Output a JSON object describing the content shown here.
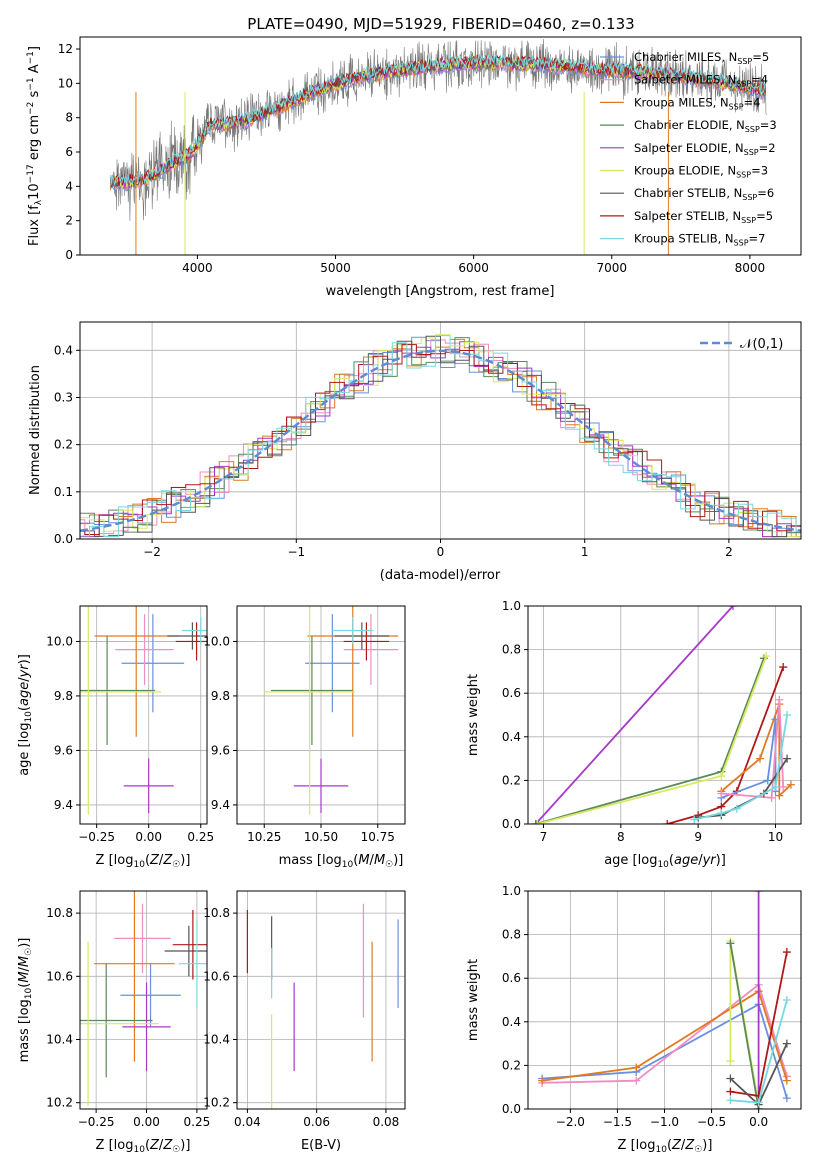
{
  "figure_title": "PLATE=0490, MJD=51929, FIBERID=0460, z=0.133",
  "colors": {
    "Chabrier MILES": "#6a8fe0",
    "Salpeter MILES": "#f08cc0",
    "Kroupa MILES": "#e07a20",
    "Chabrier ELODIE": "#5a8a5a",
    "Salpeter ELODIE": "#a838c8",
    "Kroupa ELODIE": "#d8e860",
    "Chabrier STELIB": "#555555",
    "Salpeter STELIB": "#b01818",
    "Kroupa STELIB": "#78d8e0",
    "gauss": "#5b8bd6"
  },
  "chart_data": [
    {
      "id": "spectrum",
      "type": "line",
      "xlabel": "wavelength [Angstrom, rest frame]",
      "ylabel": "Flux [f_λ10^-17 erg cm^-2 s^-1 A^-1]",
      "xlim": [
        3150,
        8370
      ],
      "ylim": [
        0,
        12.7
      ],
      "xticks": [
        4000,
        5000,
        6000,
        7000,
        8000
      ],
      "yticks": [
        0,
        2,
        4,
        6,
        8,
        10,
        12
      ],
      "grid": false,
      "legend": "top-right",
      "legend_entries": [
        "Chabrier MILES, N_SSP=5",
        "Salpeter MILES, N_SSP=4",
        "Kroupa MILES, N_SSP=4",
        "Chabrier ELODIE, N_SSP=3",
        "Salpeter ELODIE, N_SSP=2",
        "Kroupa ELODIE, N_SSP=3",
        "Chabrier STELIB, N_SSP=6",
        "Salpeter STELIB, N_SSP=5",
        "Kroupa STELIB, N_SSP=7"
      ],
      "series": [
        {
          "name": "Chabrier MILES, N_SSP=5",
          "points": [
            [
              3370,
              4.2
            ],
            [
              3600,
              4.3
            ],
            [
              3950,
              5.9
            ],
            [
              4100,
              7.6
            ],
            [
              4300,
              7.7
            ],
            [
              4600,
              8.6
            ],
            [
              4860,
              9.6
            ],
            [
              5200,
              10.4
            ],
            [
              5600,
              10.9
            ],
            [
              6000,
              11.2
            ],
            [
              6500,
              11.1
            ],
            [
              6900,
              10.8
            ],
            [
              7300,
              10.6
            ],
            [
              7600,
              10.3
            ],
            [
              8100,
              9.6
            ]
          ]
        },
        {
          "name": "Kroupa STELIB, N_SSP=7",
          "points": [
            [
              3370,
              4.1
            ],
            [
              3600,
              4.4
            ],
            [
              3900,
              5.5
            ],
            [
              4050,
              7.3
            ],
            [
              4300,
              7.8
            ],
            [
              4600,
              8.7
            ],
            [
              4860,
              9.5
            ],
            [
              5200,
              10.3
            ],
            [
              5600,
              10.9
            ],
            [
              6000,
              11.2
            ],
            [
              6500,
              11.1
            ],
            [
              6900,
              10.9
            ],
            [
              7300,
              10.6
            ],
            [
              7600,
              10.2
            ],
            [
              8100,
              9.5
            ]
          ]
        }
      ]
    },
    {
      "id": "residuals",
      "type": "line",
      "xlabel": "(data-model)/error",
      "ylabel": "Normed distribution",
      "xlim": [
        -2.5,
        2.5
      ],
      "ylim": [
        0,
        0.46
      ],
      "xticks": [
        -2,
        -1,
        0,
        1,
        2
      ],
      "yticks": [
        0.0,
        0.1,
        0.2,
        0.3,
        0.4
      ],
      "grid": true,
      "legend": "top-right",
      "legend_entries": [
        "N(0,1)"
      ],
      "series": [
        {
          "name": "N(0,1)",
          "function": "standard normal pdf"
        }
      ]
    },
    {
      "id": "age_vs_Z",
      "type": "scatter",
      "xlabel": "Z [log10(Z/Z☉)]",
      "ylabel": "age  [log10(age/yr)]",
      "xlim": [
        -0.33,
        0.28
      ],
      "ylim": [
        9.33,
        10.13
      ],
      "xticks": [
        -0.25,
        0.0,
        0.25
      ],
      "yticks": [
        9.4,
        9.6,
        9.8,
        10.0
      ],
      "grid": true,
      "points": [
        {
          "model": "Chabrier MILES",
          "x": 0.02,
          "y": 9.92,
          "xerr": 0.15,
          "yerr": 0.18
        },
        {
          "model": "Salpeter MILES",
          "x": -0.02,
          "y": 9.97,
          "xerr": 0.14,
          "yerr": 0.13
        },
        {
          "model": "Kroupa MILES",
          "x": -0.06,
          "y": 10.02,
          "xerr": 0.2,
          "yerr": 0.37
        },
        {
          "model": "Chabrier ELODIE",
          "x": -0.2,
          "y": 9.82,
          "xerr": 0.23,
          "yerr": 0.2
        },
        {
          "model": "Salpeter ELODIE",
          "x": 0.0,
          "y": 9.47,
          "xerr": 0.12,
          "yerr": 0.1
        },
        {
          "model": "Kroupa ELODIE",
          "x": -0.29,
          "y": 9.815,
          "xerr": 0.35,
          "yerr": 0.45
        },
        {
          "model": "Chabrier STELIB",
          "x": 0.21,
          "y": 10.02,
          "xerr": 0.12,
          "yerr": 0.05
        },
        {
          "model": "Salpeter STELIB",
          "x": 0.23,
          "y": 10.0,
          "xerr": 0.1,
          "yerr": 0.07
        },
        {
          "model": "Kroupa STELIB",
          "x": 0.25,
          "y": 10.04,
          "xerr": 0.09,
          "yerr": 0.05
        }
      ]
    },
    {
      "id": "age_vs_mass",
      "type": "scatter",
      "xlabel": "mass [log10(M/M☉)]",
      "ylabel": "",
      "xlim": [
        10.13,
        10.87
      ],
      "ylim": [
        9.33,
        10.13
      ],
      "xticks": [
        10.25,
        10.5,
        10.75
      ],
      "yticks": [
        9.4,
        9.6,
        9.8,
        10.0
      ],
      "grid": true,
      "points": [
        {
          "model": "Chabrier MILES",
          "x": 10.55,
          "y": 9.92,
          "xerr": 0.12,
          "yerr": 0.18
        },
        {
          "model": "Salpeter MILES",
          "x": 10.72,
          "y": 9.97,
          "xerr": 0.12,
          "yerr": 0.13
        },
        {
          "model": "Kroupa MILES",
          "x": 10.64,
          "y": 10.02,
          "xerr": 0.2,
          "yerr": 0.37
        },
        {
          "model": "Chabrier ELODIE",
          "x": 10.46,
          "y": 9.82,
          "xerr": 0.18,
          "yerr": 0.2
        },
        {
          "model": "Salpeter ELODIE",
          "x": 10.5,
          "y": 9.47,
          "xerr": 0.12,
          "yerr": 0.1
        },
        {
          "model": "Kroupa ELODIE",
          "x": 10.45,
          "y": 9.815,
          "xerr": 0.2,
          "yerr": 0.45
        },
        {
          "model": "Chabrier STELIB",
          "x": 10.68,
          "y": 10.02,
          "xerr": 0.12,
          "yerr": 0.05
        },
        {
          "model": "Salpeter STELIB",
          "x": 10.7,
          "y": 10.0,
          "xerr": 0.1,
          "yerr": 0.07
        },
        {
          "model": "Kroupa STELIB",
          "x": 10.64,
          "y": 10.04,
          "xerr": 0.09,
          "yerr": 0.05
        }
      ]
    },
    {
      "id": "weight_vs_age",
      "type": "line",
      "xlabel": "age  [log10(age/yr)]",
      "ylabel": "mass weight",
      "xlim": [
        6.8,
        10.33
      ],
      "ylim": [
        0,
        1.0
      ],
      "xticks": [
        7,
        8,
        9,
        10
      ],
      "yticks": [
        0.0,
        0.2,
        0.4,
        0.6,
        0.8,
        1.0
      ],
      "grid": true,
      "series": [
        {
          "model": "Salpeter ELODIE",
          "points": [
            [
              6.9,
              0.0
            ],
            [
              9.45,
              1.0
            ]
          ]
        },
        {
          "model": "Chabrier ELODIE",
          "points": [
            [
              6.9,
              0.0
            ],
            [
              9.3,
              0.24
            ],
            [
              9.85,
              0.76
            ]
          ]
        },
        {
          "model": "Kroupa ELODIE",
          "points": [
            [
              6.92,
              0.0
            ],
            [
              9.3,
              0.22
            ],
            [
              9.88,
              0.77
            ]
          ]
        },
        {
          "model": "Salpeter STELIB",
          "points": [
            [
              8.6,
              0.0
            ],
            [
              9.0,
              0.04
            ],
            [
              9.3,
              0.08
            ],
            [
              9.5,
              0.15
            ],
            [
              10.1,
              0.72
            ]
          ]
        },
        {
          "model": "Kroupa MILES",
          "points": [
            [
              9.3,
              0.15
            ],
            [
              9.8,
              0.3
            ],
            [
              10.05,
              0.55
            ],
            [
              10.05,
              0.13
            ],
            [
              10.2,
              0.18
            ]
          ]
        },
        {
          "model": "Chabrier MILES",
          "points": [
            [
              9.3,
              0.12
            ],
            [
              9.9,
              0.2
            ],
            [
              10.0,
              0.48
            ],
            [
              10.0,
              0.15
            ]
          ]
        },
        {
          "model": "Salpeter MILES",
          "points": [
            [
              9.3,
              0.14
            ],
            [
              9.95,
              0.12
            ],
            [
              10.05,
              0.57
            ],
            [
              10.1,
              0.17
            ]
          ]
        },
        {
          "model": "Chabrier STELIB",
          "points": [
            [
              9.0,
              0.03
            ],
            [
              9.3,
              0.04
            ],
            [
              9.85,
              0.14
            ],
            [
              10.15,
              0.3
            ]
          ]
        },
        {
          "model": "Kroupa STELIB",
          "points": [
            [
              8.95,
              0.02
            ],
            [
              9.3,
              0.05
            ],
            [
              9.5,
              0.07
            ],
            [
              10.0,
              0.17
            ],
            [
              10.15,
              0.5
            ]
          ]
        }
      ]
    },
    {
      "id": "mass_vs_Z",
      "type": "scatter",
      "xlabel": "Z [log10(Z/Z☉)]",
      "ylabel": "mass [log10(M/M☉)]",
      "xlim": [
        -0.33,
        0.3
      ],
      "ylim": [
        10.18,
        10.87
      ],
      "xticks": [
        -0.25,
        0.0,
        0.25
      ],
      "yticks": [
        10.2,
        10.4,
        10.6,
        10.8
      ],
      "grid": true,
      "points": [
        {
          "model": "Chabrier MILES",
          "x": 0.02,
          "y": 10.54,
          "xerr": 0.15,
          "yerr": 0.1
        },
        {
          "model": "Salpeter MILES",
          "x": -0.02,
          "y": 10.72,
          "xerr": 0.14,
          "yerr": 0.11
        },
        {
          "model": "Kroupa MILES",
          "x": -0.06,
          "y": 10.64,
          "xerr": 0.2,
          "yerr": 0.31
        },
        {
          "model": "Chabrier ELODIE",
          "x": -0.2,
          "y": 10.46,
          "xerr": 0.23,
          "yerr": 0.18
        },
        {
          "model": "Salpeter ELODIE",
          "x": 0.0,
          "y": 10.44,
          "xerr": 0.12,
          "yerr": 0.14
        },
        {
          "model": "Kroupa ELODIE",
          "x": -0.29,
          "y": 10.45,
          "xerr": 0.35,
          "yerr": 0.26
        },
        {
          "model": "Chabrier STELIB",
          "x": 0.21,
          "y": 10.68,
          "xerr": 0.12,
          "yerr": 0.08
        },
        {
          "model": "Salpeter STELIB",
          "x": 0.23,
          "y": 10.7,
          "xerr": 0.1,
          "yerr": 0.11
        },
        {
          "model": "Kroupa STELIB",
          "x": 0.25,
          "y": 10.64,
          "xerr": 0.09,
          "yerr": 0.14
        }
      ]
    },
    {
      "id": "mass_vs_EBV",
      "type": "scatter",
      "xlabel": "E(B-V)",
      "ylabel": "",
      "xlim": [
        0.037,
        0.0855
      ],
      "ylim": [
        10.18,
        10.87
      ],
      "xticks": [
        0.04,
        0.06,
        0.08
      ],
      "yticks": [
        10.2,
        10.4,
        10.6,
        10.8
      ],
      "grid": true,
      "points": [
        {
          "model": "Salpeter STELIB",
          "x": 0.04,
          "y": 10.71,
          "yerr": 0.1
        },
        {
          "model": "Chabrier STELIB",
          "x": 0.047,
          "y": 10.69,
          "yerr": 0.1
        },
        {
          "model": "Kroupa STELIB",
          "x": 0.047,
          "y": 10.61,
          "yerr": 0.08
        },
        {
          "model": "Kroupa ELODIE",
          "x": 0.047,
          "y": 10.33,
          "yerr": 0.15
        },
        {
          "model": "Salpeter ELODIE",
          "x": 0.0535,
          "y": 10.44,
          "yerr": 0.14
        },
        {
          "model": "Salpeter MILES",
          "x": 0.0735,
          "y": 10.65,
          "yerr": 0.18
        },
        {
          "model": "Kroupa MILES",
          "x": 0.076,
          "y": 10.52,
          "yerr": 0.19
        },
        {
          "model": "Chabrier MILES",
          "x": 0.0835,
          "y": 10.64,
          "yerr": 0.14
        }
      ]
    },
    {
      "id": "weight_vs_Z",
      "type": "line",
      "xlabel": "Z [log10(Z/Z☉)]",
      "ylabel": "mass weight",
      "xlim": [
        -2.45,
        0.45
      ],
      "ylim": [
        0,
        1.0
      ],
      "xticks": [
        -2.0,
        -1.5,
        -1.0,
        -0.5,
        0.0
      ],
      "yticks": [
        0.0,
        0.2,
        0.4,
        0.6,
        0.8,
        1.0
      ],
      "grid": true,
      "series": [
        {
          "model": "Chabrier MILES",
          "points": [
            [
              -2.3,
              0.14
            ],
            [
              -1.3,
              0.17
            ],
            [
              0.0,
              0.48
            ],
            [
              0.3,
              0.05
            ]
          ]
        },
        {
          "model": "Salpeter MILES",
          "points": [
            [
              -2.3,
              0.12
            ],
            [
              -1.3,
              0.13
            ],
            [
              0.0,
              0.57
            ],
            [
              0.3,
              0.15
            ]
          ]
        },
        {
          "model": "Kroupa MILES",
          "points": [
            [
              -2.3,
              0.13
            ],
            [
              -1.3,
              0.19
            ],
            [
              0.0,
              0.54
            ],
            [
              0.3,
              0.13
            ]
          ]
        },
        {
          "model": "Salpeter ELODIE",
          "points": [
            [
              0.0,
              0.0
            ],
            [
              0.0,
              1.0
            ]
          ]
        },
        {
          "model": "Kroupa ELODIE",
          "points": [
            [
              -0.3,
              0.22
            ],
            [
              -0.3,
              0.77
            ],
            [
              0.0,
              0.02
            ]
          ]
        },
        {
          "model": "Chabrier ELODIE",
          "points": [
            [
              -0.3,
              0.76
            ],
            [
              0.0,
              0.0
            ]
          ]
        },
        {
          "model": "Salpeter STELIB",
          "points": [
            [
              -0.3,
              0.08
            ],
            [
              0.0,
              0.06
            ],
            [
              0.3,
              0.72
            ]
          ]
        },
        {
          "model": "Chabrier STELIB",
          "points": [
            [
              -0.3,
              0.14
            ],
            [
              0.0,
              0.02
            ],
            [
              0.3,
              0.3
            ]
          ]
        },
        {
          "model": "Kroupa STELIB",
          "points": [
            [
              -0.3,
              0.04
            ],
            [
              0.0,
              0.03
            ],
            [
              0.3,
              0.5
            ]
          ]
        }
      ]
    }
  ]
}
